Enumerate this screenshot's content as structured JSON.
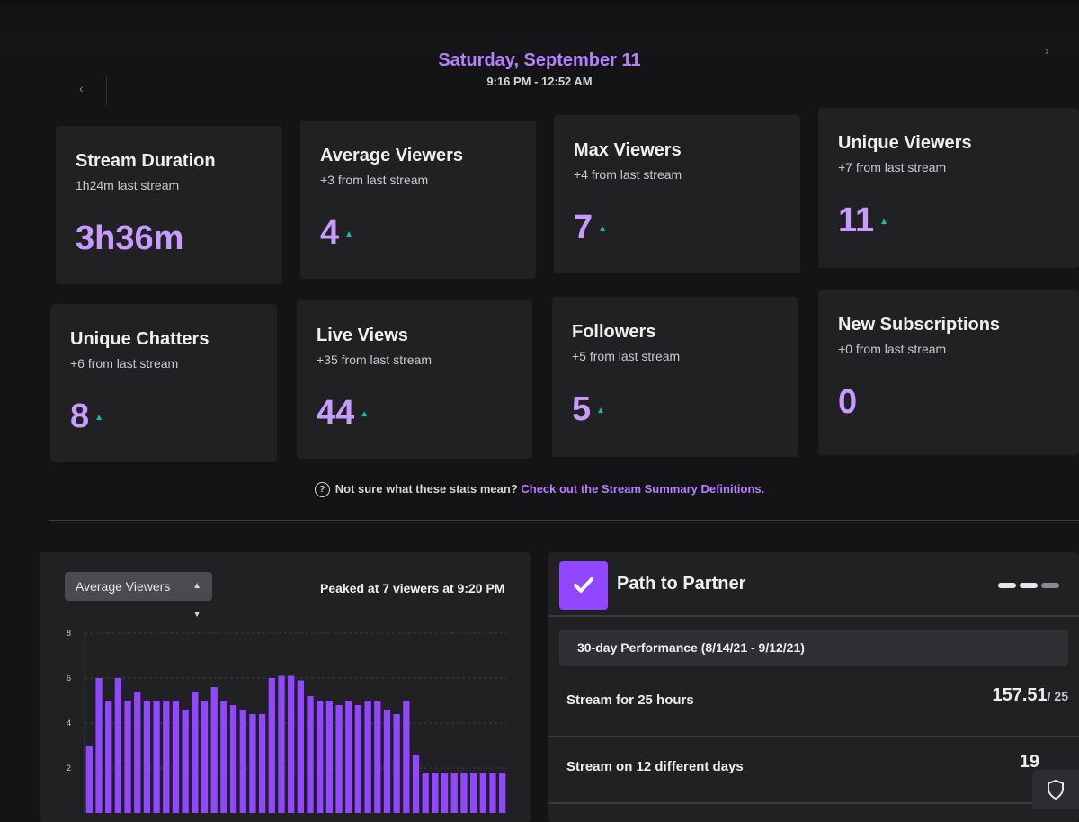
{
  "header": {
    "date": "Saturday, September 11",
    "time_range": "9:16 PM - 12:52 AM"
  },
  "nav": {
    "prev": "‹",
    "next": "›"
  },
  "stats": [
    {
      "title": "Stream Duration",
      "sub": "1h24m last stream",
      "value": "3h36m",
      "trend_up": false
    },
    {
      "title": "Average Viewers",
      "sub": "+3 from last stream",
      "value": "4",
      "trend_up": true
    },
    {
      "title": "Max Viewers",
      "sub": "+4 from last stream",
      "value": "7",
      "trend_up": true
    },
    {
      "title": "Unique Viewers",
      "sub": "+7 from last stream",
      "value": "11",
      "trend_up": true
    },
    {
      "title": "Unique Chatters",
      "sub": "+6 from last stream",
      "value": "8",
      "trend_up": true
    },
    {
      "title": "Live Views",
      "sub": "+35 from last stream",
      "value": "44",
      "trend_up": true
    },
    {
      "title": "Followers",
      "sub": "+5 from last stream",
      "value": "5",
      "trend_up": true
    },
    {
      "title": "New Subscriptions",
      "sub": "+0 from last stream",
      "value": "0",
      "trend_up": false
    }
  ],
  "help": {
    "icon": "?",
    "question": "Not sure what these stats mean?",
    "link": "Check out the Stream Summary Definitions."
  },
  "chart_panel": {
    "select_value": "Average Viewers",
    "peak_text": "Peaked at 7 viewers at 9:20 PM"
  },
  "chart_data": {
    "type": "bar",
    "ylim": [
      0,
      8
    ],
    "yticks": [
      "8",
      "6",
      "4",
      "2"
    ],
    "ytick_values": [
      8,
      6,
      4,
      2
    ],
    "values": [
      3,
      6,
      5,
      6,
      5,
      5.4,
      5,
      5,
      5,
      5,
      4.6,
      5.4,
      5,
      5.6,
      5,
      4.8,
      4.6,
      4.4,
      4.4,
      6,
      6.1,
      6.1,
      5.9,
      5.2,
      5,
      5,
      4.8,
      5,
      4.8,
      5,
      5,
      4.6,
      4.4,
      5,
      2.6,
      1.8,
      1.8,
      1.8,
      1.8,
      1.8,
      1.8,
      1.8,
      1.8,
      1.8
    ],
    "bar_color": "#9146ff"
  },
  "partner": {
    "title": "Path to Partner",
    "performance": "30-day Performance (8/14/21 - 9/12/21)",
    "goals": [
      {
        "label": "Stream for 25 hours",
        "value": "157.51",
        "target": "/ 25"
      },
      {
        "label": "Stream on 12 different days",
        "value": "19",
        "target": ""
      }
    ],
    "accent": "#9146ff"
  },
  "icons": {
    "check": "check-icon",
    "shield": "shield-icon",
    "chevron": "chevron-updown-icon"
  }
}
